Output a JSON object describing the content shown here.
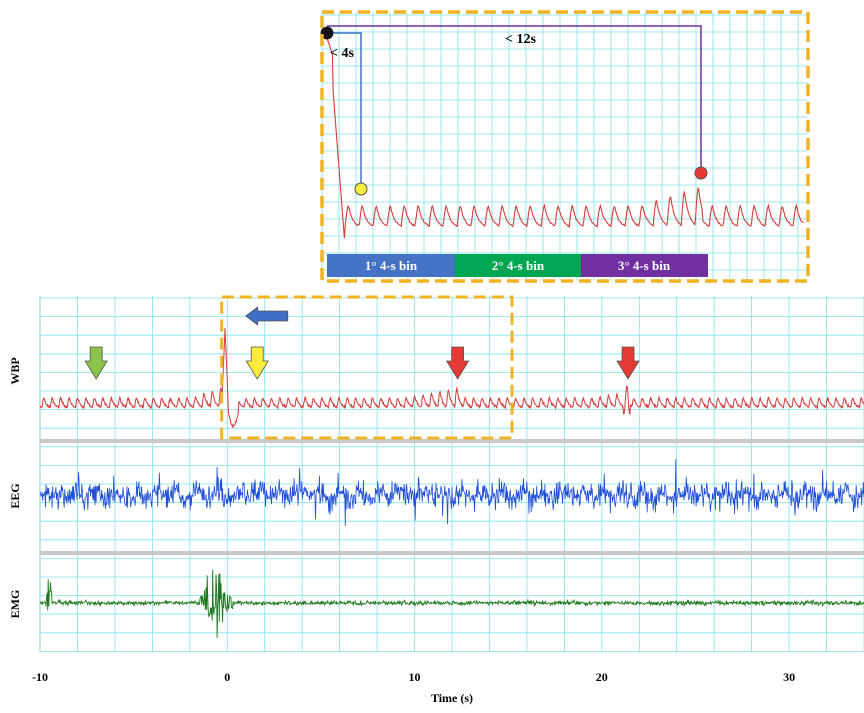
{
  "chart_data": {
    "type": "line",
    "title": "",
    "xlabel": "Time (s)",
    "xlim": [
      -10,
      34
    ],
    "x_ticks": [
      "-10",
      "0",
      "10",
      "20",
      "30"
    ],
    "x_tick_values": [
      -10,
      0,
      10,
      20,
      30
    ],
    "grid": true,
    "colors": {
      "grid": "#7fe3ea",
      "wbp": "#d63a3a",
      "eeg": "#1f4fd8",
      "emg": "#1f7a1f",
      "highlight": "#f0b323",
      "separator": "#c8c8c8"
    },
    "channels": [
      {
        "name": "WBP",
        "color": "#d63a3a"
      },
      {
        "name": "EEG",
        "color": "#1f4fd8"
      },
      {
        "name": "EMG",
        "color": "#1f7a1f"
      }
    ],
    "highlight_window_s": [
      -0.3,
      15.2
    ],
    "markers": [
      {
        "channel": "WBP",
        "kind": "arrow-down",
        "color": "#8bc34a",
        "x": -7.0
      },
      {
        "channel": "WBP",
        "kind": "arrow-left",
        "color": "#3d6fc4",
        "x": 1.2
      },
      {
        "channel": "WBP",
        "kind": "arrow-down",
        "color": "#ffeb3b",
        "x": 1.6
      },
      {
        "channel": "WBP",
        "kind": "arrow-down",
        "color": "#e53935",
        "x": 12.3
      },
      {
        "channel": "WBP",
        "kind": "arrow-down",
        "color": "#e53935",
        "x": 21.4
      }
    ],
    "inset": {
      "annotations": [
        "< 4s",
        "< 12s"
      ],
      "points": [
        {
          "t": 0,
          "color": "#111111"
        },
        {
          "t": 4,
          "color": "#ffeb3b"
        },
        {
          "t": 12,
          "color": "#e53935"
        }
      ],
      "bins": [
        {
          "label": "1° 4-s bin",
          "color": "#4472c4"
        },
        {
          "label": "2° 4-s bin",
          "color": "#00a651"
        },
        {
          "label": "3° 4-s bin",
          "color": "#7030a0"
        }
      ]
    }
  }
}
